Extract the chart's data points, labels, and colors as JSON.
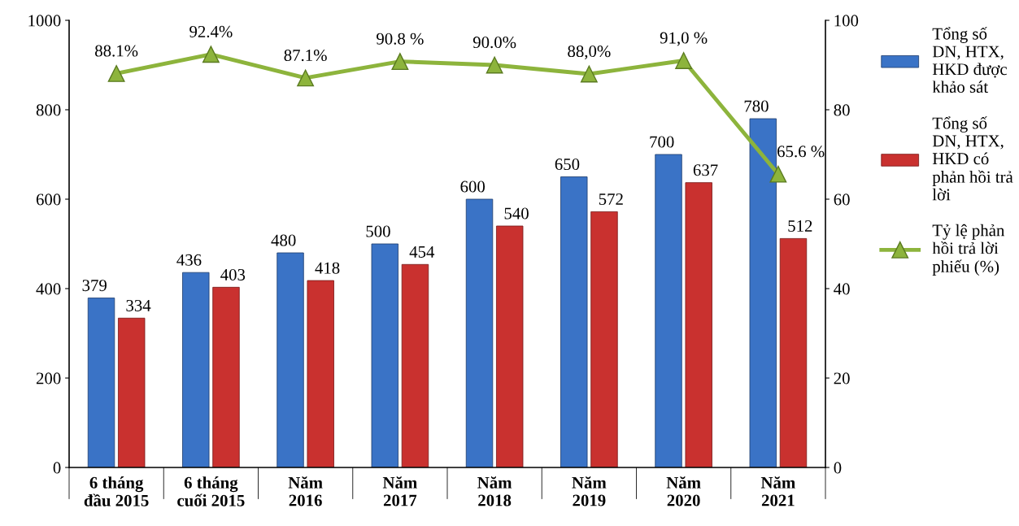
{
  "chart_data": {
    "type": "bar",
    "categories": [
      "6 tháng\nđầu 2015",
      "6 tháng\ncuối 2015",
      "Năm\n2016",
      "Năm\n2017",
      "Năm\n2018",
      "Năm\n2019",
      "Năm\n2020",
      "Năm\n2021"
    ],
    "series": [
      {
        "name": "Tổng số\nDN, HTX,\nHKD được\nkhảo sát",
        "color": "#3a73c6",
        "values": [
          379,
          436,
          480,
          500,
          600,
          650,
          700,
          780
        ],
        "value_labels": [
          "379",
          "436",
          "480",
          "500",
          "600",
          "650",
          "700",
          "780"
        ]
      },
      {
        "name": "Tổng số\nDN, HTX,\nHKD có\nphản hồi trả\nlời",
        "color": "#c9312f",
        "values": [
          334,
          403,
          418,
          454,
          540,
          572,
          637,
          512
        ],
        "value_labels": [
          "334",
          "403",
          "418",
          "454",
          "540",
          "572",
          "637",
          "512"
        ]
      },
      {
        "name": "Tỷ lệ phản\nhồi trả lời\nphiếu (%)",
        "type": "line",
        "axis": "y2",
        "color": "#8db43c",
        "marker": "triangle",
        "values": [
          88.1,
          92.4,
          87.1,
          90.8,
          90.0,
          88.0,
          91.0,
          65.6
        ],
        "value_labels": [
          "88.1%",
          "92.4%",
          "87.1%",
          "90.8 %",
          "90.0%",
          "88,0%",
          "91,0 %",
          "65.6 %"
        ]
      }
    ],
    "ylim": [
      0,
      1000
    ],
    "yticks": [
      0,
      200,
      400,
      600,
      800,
      1000
    ],
    "y2lim": [
      0,
      100
    ],
    "y2ticks": [
      0,
      20,
      40,
      60,
      80,
      100
    ],
    "grid": false,
    "legend": "right"
  }
}
